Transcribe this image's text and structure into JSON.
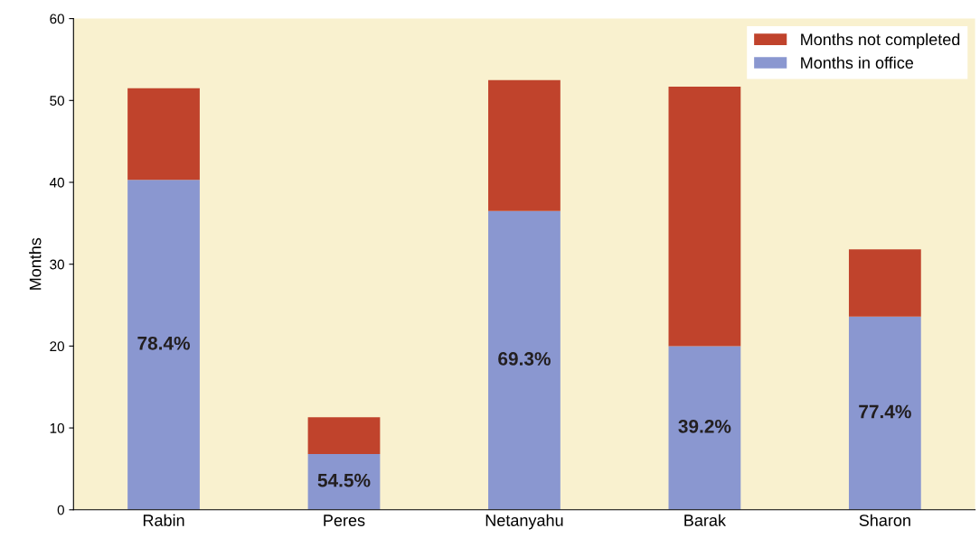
{
  "chart_data": {
    "type": "bar",
    "stacked": true,
    "ylabel": "Months",
    "categories": [
      "Rabin",
      "Peres",
      "Netanyahu",
      "Barak",
      "Sharon"
    ],
    "series": [
      {
        "name": "Months in office",
        "color": "#8a97d0",
        "values": [
          40.3,
          6.8,
          36.5,
          20.0,
          23.6
        ]
      },
      {
        "name": "Months not completed",
        "color": "#c0432c",
        "values": [
          11.2,
          4.5,
          16.0,
          31.7,
          8.2
        ]
      }
    ],
    "annotations": [
      "78.4%",
      "54.5%",
      "69.3%",
      "39.2%",
      "77.4%"
    ],
    "ylim": [
      0,
      60
    ],
    "yticks": [
      0,
      10,
      20,
      30,
      40,
      50,
      60
    ],
    "grid": false,
    "legend": "top right"
  }
}
